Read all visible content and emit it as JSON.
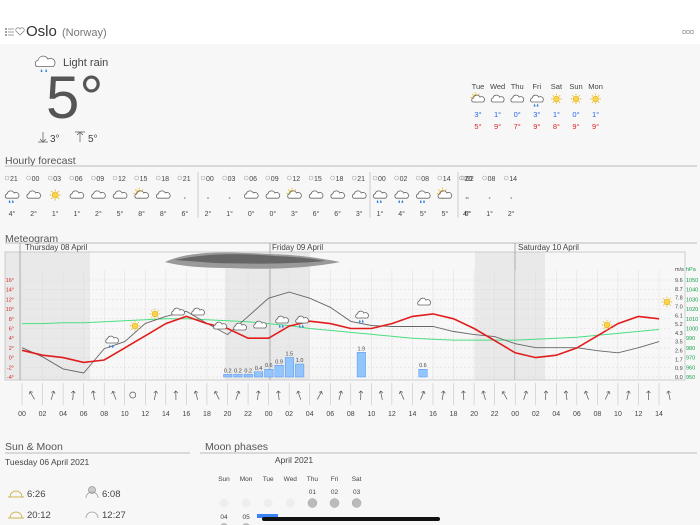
{
  "header": {
    "location": "Oslo",
    "country": "(Norway)"
  },
  "current": {
    "condition": "Light rain",
    "temperature": "5°",
    "low": "3°",
    "high": "5°"
  },
  "daily": [
    {
      "day": "Tue",
      "low": "3°",
      "high": "5°"
    },
    {
      "day": "Wed",
      "low": "1°",
      "high": "9°"
    },
    {
      "day": "Thu",
      "low": "0°",
      "high": "7°"
    },
    {
      "day": "Fri",
      "low": "3°",
      "high": "9°"
    },
    {
      "day": "Sat",
      "low": "1°",
      "high": "8°"
    },
    {
      "day": "Sun",
      "low": "0°",
      "high": "9°"
    },
    {
      "day": "Mon",
      "low": "1°",
      "high": "9°"
    }
  ],
  "hourly": {
    "title": "Hourly forecast",
    "groups": [
      {
        "times": [
          "21",
          "00",
          "03",
          "06",
          "09",
          "12",
          "15",
          "18",
          "21"
        ],
        "temps": [
          "4°",
          "2°",
          "1°",
          "1°",
          "2°",
          "5°",
          "8°",
          "8°",
          "6°"
        ]
      },
      {
        "times": [
          "00",
          "03",
          "06",
          "09",
          "12",
          "15",
          "18",
          "21"
        ],
        "temps": [
          "2°",
          "1°",
          "0°",
          "0°",
          "3°",
          "6°",
          "6°",
          "3°"
        ]
      },
      {
        "times": [
          "00",
          "02",
          "08",
          "14",
          "20"
        ],
        "temps": [
          "1°",
          "4°",
          "5°",
          "5°",
          "4°"
        ]
      },
      {
        "times": [
          "02",
          "08",
          "14"
        ],
        "temps": [
          "6°",
          "1°",
          "2°"
        ]
      }
    ]
  },
  "meteogram": {
    "title": "Meteogram",
    "days": [
      "Thursday 08 April",
      "Friday 09 April",
      "Saturday 10 April"
    ],
    "temp_ticks": [
      {
        "value": 16,
        "label": "16°"
      },
      {
        "value": 14,
        "label": "14°"
      },
      {
        "value": 12,
        "label": "12°"
      },
      {
        "value": 10,
        "label": "10°"
      },
      {
        "value": 8,
        "label": "8°"
      },
      {
        "value": 6,
        "label": "6°"
      },
      {
        "value": 4,
        "label": "4°"
      },
      {
        "value": 2,
        "label": "2°"
      },
      {
        "value": 0,
        "label": "0°"
      },
      {
        "value": -2,
        "label": "-2°"
      },
      {
        "value": -4,
        "label": "-4°"
      }
    ],
    "wind_unit": "m/s",
    "wind_ticks": [
      9.6,
      8.7,
      7.8,
      {
        "value": 7,
        "label": "7.0"
      },
      6.1,
      5.2,
      4.3,
      3.5,
      2.6,
      1.7,
      0.9,
      {
        "value": 0,
        "label": "0.0"
      }
    ],
    "pressure_unit": "hPa",
    "pressure_ticks": [
      1050,
      1040,
      1030,
      1020,
      1010,
      1000,
      990,
      980,
      970,
      960,
      950
    ],
    "hours": [
      "00",
      "02",
      "04",
      "06",
      "08",
      "10",
      "12",
      "14",
      "16",
      "18",
      "20",
      "22",
      "00",
      "02",
      "04",
      "06",
      "08",
      "10",
      "12",
      "14",
      "16",
      "18",
      "20",
      "22",
      "00",
      "02",
      "04",
      "06",
      "08",
      "10",
      "12",
      "14"
    ],
    "temperature": [
      1.5,
      0.5,
      0,
      -1,
      -0.5,
      2,
      4.5,
      7,
      8.5,
      7,
      6,
      4,
      4,
      6.5,
      7.5,
      7,
      6,
      6,
      7,
      8.5,
      9,
      8,
      6,
      3.5,
      1,
      0,
      0.5,
      2,
      4.5,
      7,
      8.5,
      8
    ],
    "wind": [
      2.9,
      2,
      0.8,
      0.4,
      2.8,
      3.5,
      5.3,
      6,
      6.5,
      5.3,
      4.2,
      6,
      7.8,
      8.4,
      7.8,
      6.9,
      5.5,
      5.1,
      5,
      5,
      5,
      4.5,
      4.2,
      4,
      3.3,
      2.9,
      2.9,
      2.9,
      2.6,
      2.4,
      2.9,
      3.5
    ],
    "pressure": [
      1005,
      1005,
      1006,
      1006,
      1007,
      1008,
      1009,
      1010,
      1010,
      1009,
      1008,
      1007,
      1005,
      1003,
      1000,
      998,
      996,
      994,
      992,
      990,
      989,
      988,
      988,
      988,
      988,
      989,
      990,
      991,
      993,
      995,
      997,
      999
    ],
    "precipitation": {
      "x": [
        20,
        21,
        22,
        23,
        24,
        25,
        26,
        27,
        33,
        39
      ],
      "values": [
        0.2,
        0.2,
        0.2,
        0.4,
        0.6,
        0.9,
        1.5,
        1.0,
        1.9,
        0.6
      ],
      "value_labels": [
        "0.2",
        "0.2",
        "0.2",
        "0.4",
        "0.6",
        "0.9",
        "1.5",
        "1.0",
        "1.9",
        "0.6"
      ]
    }
  },
  "sun_moon": {
    "title": "Sun & Moon",
    "date": "Tuesday 06 April 2021",
    "sunrise": "6:26",
    "sunset": "20:12",
    "moonrise": "6:08",
    "moonset": "12:27"
  },
  "moon_phases": {
    "title": "Moon phases",
    "month": "April 2021",
    "weekdays": [
      "Sun",
      "Mon",
      "Tue",
      "Wed",
      "Thu",
      "Fri",
      "Sat"
    ],
    "dates": [
      "01",
      "02",
      "03",
      "04",
      "05"
    ]
  }
}
